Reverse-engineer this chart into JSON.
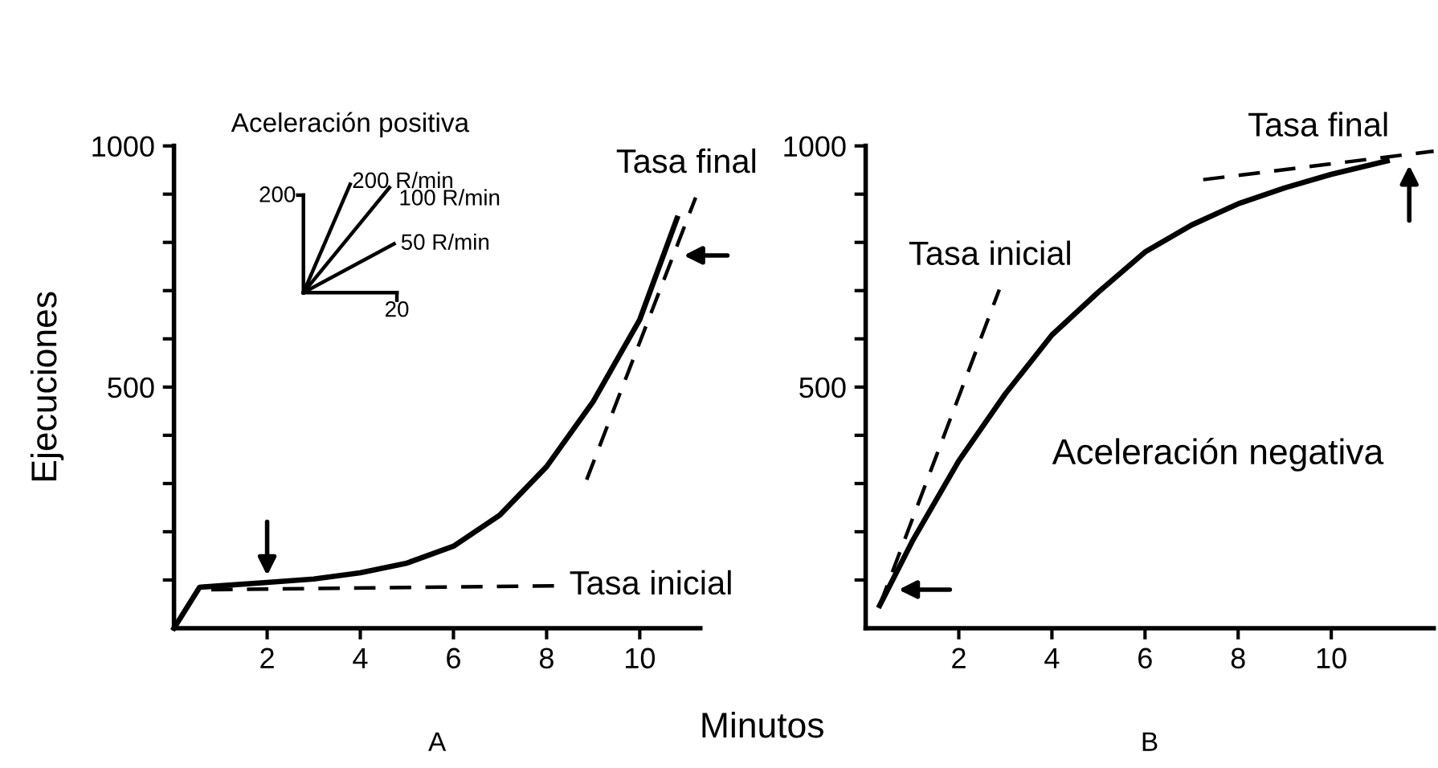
{
  "chart_data": [
    {
      "type": "line",
      "xlabel": "Minutos",
      "ylabel": "Ejecuciones",
      "annotations": [
        "A"
      ],
      "xlim": [
        0,
        11.3
      ],
      "ylim": [
        0,
        1000
      ],
      "xticks": [
        2,
        4,
        6,
        8,
        10
      ],
      "yticks": [
        {
          "value": 100,
          "label": null
        },
        {
          "value": 200,
          "label": null
        },
        {
          "value": 300,
          "label": null
        },
        {
          "value": 400,
          "label": null
        },
        500,
        {
          "value": 600,
          "label": null
        },
        {
          "value": 700,
          "label": null
        },
        {
          "value": 800,
          "label": null
        },
        {
          "value": 900,
          "label": null
        },
        1000
      ],
      "series": [
        {
          "color": "#000000",
          "x": [
            0,
            0.55,
            1,
            2,
            3,
            4,
            5,
            6,
            7,
            8,
            9,
            10,
            10.8
          ],
          "values": [
            0,
            85,
            88,
            95,
            102,
            115,
            135,
            170,
            235,
            335,
            470,
            640,
            850
          ]
        },
        {
          "name": "Tasa inicial",
          "color": "#000000",
          "line_style": "dashed",
          "x": [
            0.8,
            8.2
          ],
          "values": [
            80,
            88
          ]
        },
        {
          "name": "Tasa final",
          "color": "#000000",
          "line_style": "dashed",
          "x": [
            8.86,
            11.2
          ],
          "values": [
            308,
            893
          ]
        }
      ],
      "grid": false,
      "legend": false,
      "marker": "none",
      "line_style": "solid"
    },
    {
      "type": "other",
      "title": "Aceleración positiva",
      "annotations": [
        "200",
        "20",
        "200 R/min",
        "100 R/min",
        "50 R/min"
      ]
    },
    {
      "type": "line",
      "annotations": [
        "Aceleración negativa",
        "B"
      ],
      "xlim": [
        0,
        12.2
      ],
      "ylim": [
        0,
        1000
      ],
      "xticks": [
        2,
        4,
        6,
        8,
        10
      ],
      "yticks": [
        {
          "value": 100,
          "label": null
        },
        {
          "value": 200,
          "label": null
        },
        {
          "value": 300,
          "label": null
        },
        {
          "value": 400,
          "label": null
        },
        500,
        {
          "value": 600,
          "label": null
        },
        {
          "value": 700,
          "label": null
        },
        {
          "value": 800,
          "label": null
        },
        {
          "value": 900,
          "label": null
        },
        1000
      ],
      "series": [
        {
          "color": "#000000",
          "x": [
            0.3,
            1,
            2,
            3,
            4,
            5,
            6,
            7,
            8,
            9,
            10,
            11.2
          ],
          "values": [
            47,
            180,
            347,
            486,
            608,
            697,
            780,
            836,
            880,
            913,
            941,
            969
          ]
        },
        {
          "name": "Tasa inicial",
          "color": "#000000",
          "line_style": "dashed",
          "x": [
            0.3,
            2.87
          ],
          "values": [
            47,
            702
          ]
        },
        {
          "name": "Tasa final",
          "color": "#000000",
          "line_style": "dashed",
          "x": [
            7.25,
            12.2
          ],
          "values": [
            930,
            989
          ]
        }
      ],
      "grid": false,
      "legend": false,
      "marker": "none",
      "line_style": "solid"
    }
  ]
}
